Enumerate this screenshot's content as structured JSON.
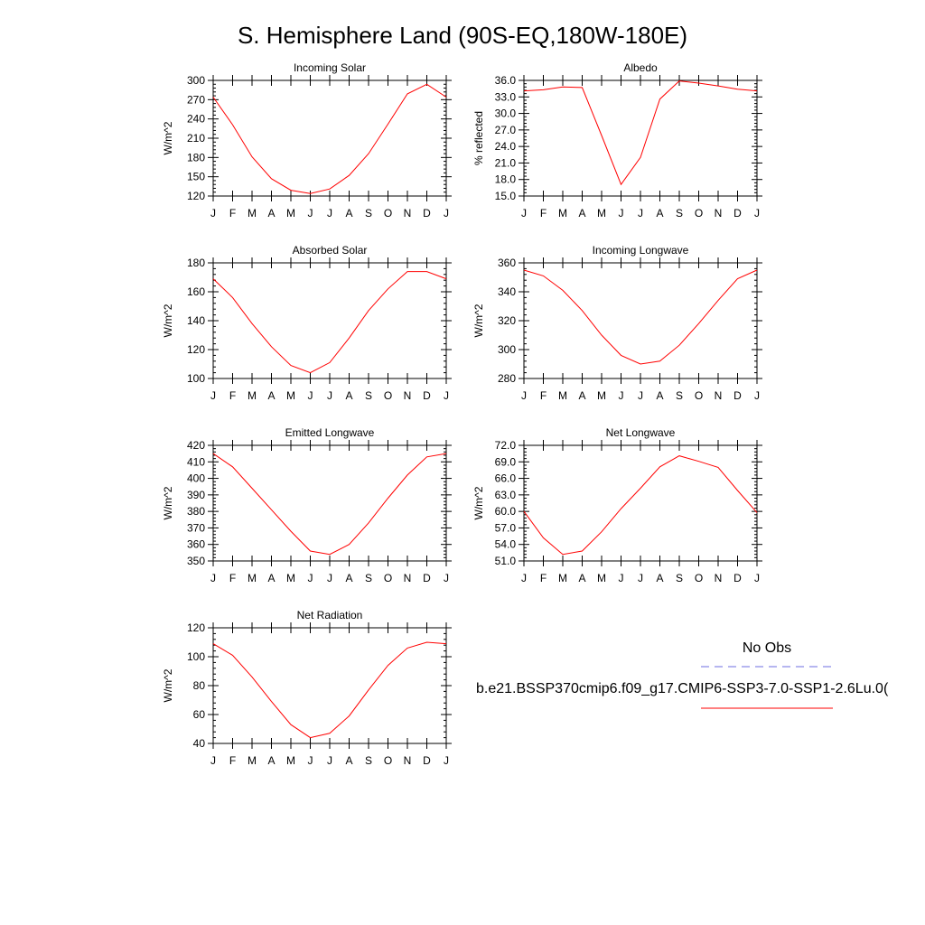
{
  "page": {
    "title": "S. Hemisphere Land (90S-EQ,180W-180E)"
  },
  "legend": {
    "items": [
      {
        "name": "No Obs",
        "style": "dashed",
        "color": "#6e6ee0"
      },
      {
        "name": "b.e21.BSSP370cmip6.f09_g17.CMIP6-SSP3-7.0-SSP1-2.6Lu.0(",
        "style": "solid",
        "color": "#ff0000"
      }
    ]
  },
  "chart_data": [
    {
      "type": "line",
      "title": "Incoming Solar",
      "xlabel": "",
      "ylabel": "W/m^2",
      "x": [
        "J",
        "F",
        "M",
        "A",
        "M",
        "J",
        "J",
        "A",
        "S",
        "O",
        "N",
        "D",
        "J"
      ],
      "ylim": [
        120,
        300
      ],
      "yticks": [
        120,
        150,
        180,
        210,
        240,
        270,
        300
      ],
      "ytick_labels": [
        "120",
        "150",
        "180",
        "210",
        "240",
        "270",
        "300"
      ],
      "series": [
        {
          "color": "#ff0000",
          "values": [
            274,
            231,
            181,
            147,
            129,
            124,
            131,
            152,
            186,
            232,
            279,
            294,
            274
          ]
        }
      ]
    },
    {
      "type": "line",
      "title": "Albedo",
      "xlabel": "",
      "ylabel": "% reflected",
      "x": [
        "J",
        "F",
        "M",
        "A",
        "M",
        "J",
        "J",
        "A",
        "S",
        "O",
        "N",
        "D",
        "J"
      ],
      "ylim": [
        15.0,
        36.0
      ],
      "yticks": [
        15,
        18,
        21,
        24,
        27,
        30,
        33,
        36
      ],
      "ytick_labels": [
        "15.0",
        "18.0",
        "21.0",
        "24.0",
        "27.0",
        "30.0",
        "33.0",
        "36.0"
      ],
      "series": [
        {
          "color": "#ff0000",
          "values": [
            34.1,
            34.3,
            34.8,
            34.7,
            26.0,
            17.1,
            22.0,
            32.6,
            35.9,
            35.5,
            35.0,
            34.4,
            34.1
          ]
        }
      ]
    },
    {
      "type": "line",
      "title": "Absorbed Solar",
      "xlabel": "",
      "ylabel": "W/m^2",
      "x": [
        "J",
        "F",
        "M",
        "A",
        "M",
        "J",
        "J",
        "A",
        "S",
        "O",
        "N",
        "D",
        "J"
      ],
      "ylim": [
        100,
        180
      ],
      "yticks": [
        100,
        120,
        140,
        160,
        180
      ],
      "ytick_labels": [
        "100",
        "120",
        "140",
        "160",
        "180"
      ],
      "series": [
        {
          "color": "#ff0000",
          "values": [
            169,
            156,
            138,
            122,
            109,
            104,
            111,
            128,
            147,
            162,
            174,
            174,
            169
          ]
        }
      ]
    },
    {
      "type": "line",
      "title": "Incoming Longwave",
      "xlabel": "",
      "ylabel": "W/m^2",
      "x": [
        "J",
        "F",
        "M",
        "A",
        "M",
        "J",
        "J",
        "A",
        "S",
        "O",
        "N",
        "D",
        "J"
      ],
      "ylim": [
        280,
        360
      ],
      "yticks": [
        280,
        300,
        320,
        340,
        360
      ],
      "ytick_labels": [
        "280",
        "300",
        "320",
        "340",
        "360"
      ],
      "series": [
        {
          "color": "#ff0000",
          "values": [
            355,
            351,
            341,
            327,
            310,
            296,
            290,
            292,
            303,
            318,
            334,
            349,
            355
          ]
        }
      ]
    },
    {
      "type": "line",
      "title": "Emitted Longwave",
      "xlabel": "",
      "ylabel": "W/m^2",
      "x": [
        "J",
        "F",
        "M",
        "A",
        "M",
        "J",
        "J",
        "A",
        "S",
        "O",
        "N",
        "D",
        "J"
      ],
      "ylim": [
        350,
        420
      ],
      "yticks": [
        350,
        360,
        370,
        380,
        390,
        400,
        410,
        420
      ],
      "ytick_labels": [
        "350",
        "360",
        "370",
        "380",
        "390",
        "400",
        "410",
        "420"
      ],
      "series": [
        {
          "color": "#ff0000",
          "values": [
            415,
            407,
            394,
            381,
            368,
            356,
            354,
            360,
            373,
            388,
            402,
            413,
            415
          ]
        }
      ]
    },
    {
      "type": "line",
      "title": "Net Longwave",
      "xlabel": "",
      "ylabel": "W/m^2",
      "x": [
        "J",
        "F",
        "M",
        "A",
        "M",
        "J",
        "J",
        "A",
        "S",
        "O",
        "N",
        "D",
        "J"
      ],
      "ylim": [
        51.0,
        72.0
      ],
      "yticks": [
        51,
        54,
        57,
        60,
        63,
        66,
        69,
        72
      ],
      "ytick_labels": [
        "51.0",
        "54.0",
        "57.0",
        "60.0",
        "63.0",
        "66.0",
        "69.0",
        "72.0"
      ],
      "series": [
        {
          "color": "#ff0000",
          "values": [
            60.0,
            55.2,
            52.2,
            52.8,
            56.3,
            60.5,
            64.2,
            68.1,
            70.1,
            69.1,
            68.0,
            63.8,
            59.8
          ]
        }
      ]
    },
    {
      "type": "line",
      "title": "Net Radiation",
      "xlabel": "",
      "ylabel": "W/m^2",
      "x": [
        "J",
        "F",
        "M",
        "A",
        "M",
        "J",
        "J",
        "A",
        "S",
        "O",
        "N",
        "D",
        "J"
      ],
      "ylim": [
        40,
        120
      ],
      "yticks": [
        40,
        60,
        80,
        100,
        120
      ],
      "ytick_labels": [
        "40",
        "60",
        "80",
        "100",
        "120"
      ],
      "series": [
        {
          "color": "#ff0000",
          "values": [
            109,
            101,
            86,
            69,
            53,
            44,
            47,
            59,
            77,
            94,
            106,
            110,
            109
          ]
        }
      ]
    }
  ]
}
